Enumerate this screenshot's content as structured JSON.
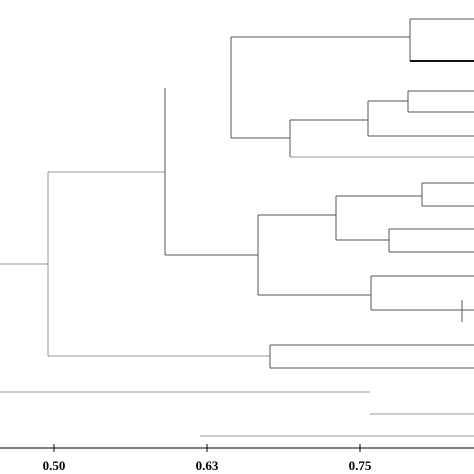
{
  "figure": {
    "type": "dendrogram",
    "axis": {
      "tick_labels": [
        {
          "value": 0.5,
          "label": "0.50"
        },
        {
          "value": 0.63,
          "label": "0.63"
        },
        {
          "value": 0.75,
          "label": "0.75"
        }
      ]
    },
    "line_color": "#555555",
    "bold_line_color": "#111111"
  }
}
